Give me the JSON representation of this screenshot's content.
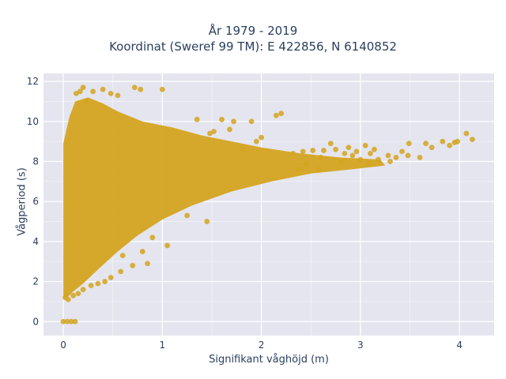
{
  "chart_data": {
    "type": "scatter",
    "title_lines": [
      "År 1979 - 2019",
      "Koordinat (Sweref 99 TM): E 422856, N 6140852"
    ],
    "xlabel": "Signifikant våghöjd (m)",
    "ylabel": "Vågperiod (s)",
    "xlim": [
      -0.2,
      4.35
    ],
    "ylim": [
      -0.7,
      12.4
    ],
    "x_ticks": [
      0,
      1,
      2,
      3,
      4
    ],
    "y_ticks": [
      0,
      2,
      4,
      6,
      8,
      10,
      12
    ],
    "grid": true,
    "legend": "none",
    "point_color": "#d4a420",
    "plot_bg": "#e5e5ef",
    "series": [
      {
        "values": [
          [
            4.13,
            9.1
          ],
          [
            4.07,
            9.4
          ],
          [
            3.98,
            9.0
          ],
          [
            3.95,
            8.95
          ],
          [
            3.9,
            8.8
          ],
          [
            3.83,
            9.0
          ],
          [
            3.72,
            8.7
          ],
          [
            3.66,
            8.9
          ],
          [
            3.6,
            8.2
          ],
          [
            3.49,
            8.9
          ],
          [
            3.48,
            8.3
          ],
          [
            3.42,
            8.5
          ],
          [
            3.36,
            8.2
          ],
          [
            3.3,
            8.0
          ],
          [
            3.28,
            8.3
          ],
          [
            3.18,
            8.1
          ],
          [
            3.14,
            8.6
          ],
          [
            3.1,
            8.4
          ],
          [
            3.08,
            7.9
          ],
          [
            3.05,
            8.8
          ],
          [
            3.0,
            8.1
          ],
          [
            2.96,
            8.5
          ],
          [
            2.92,
            8.3
          ],
          [
            2.88,
            8.7
          ],
          [
            2.84,
            8.4
          ],
          [
            2.8,
            8.0
          ],
          [
            2.75,
            8.6
          ],
          [
            2.7,
            8.9
          ],
          [
            2.63,
            8.55
          ],
          [
            2.6,
            8.2
          ],
          [
            2.58,
            7.6
          ],
          [
            2.52,
            8.55
          ],
          [
            2.45,
            7.9
          ],
          [
            2.42,
            8.5
          ],
          [
            2.38,
            7.6
          ],
          [
            2.32,
            8.4
          ],
          [
            2.2,
            10.4
          ],
          [
            2.15,
            10.3
          ],
          [
            2.0,
            9.2
          ],
          [
            1.95,
            9.0
          ],
          [
            1.9,
            10.0
          ],
          [
            1.82,
            8.6
          ],
          [
            1.72,
            10.0
          ],
          [
            1.68,
            9.6
          ],
          [
            1.6,
            10.1
          ],
          [
            1.52,
            9.5
          ],
          [
            1.48,
            9.4
          ],
          [
            1.35,
            10.1
          ],
          [
            1.0,
            11.6
          ],
          [
            0.78,
            11.6
          ],
          [
            0.72,
            11.7
          ],
          [
            0.55,
            11.3
          ],
          [
            0.48,
            11.4
          ],
          [
            0.4,
            11.6
          ],
          [
            0.3,
            11.5
          ],
          [
            0.2,
            11.7
          ],
          [
            0.17,
            11.5
          ],
          [
            0.13,
            11.4
          ],
          [
            0.23,
            11.0
          ],
          [
            1.25,
            5.3
          ],
          [
            1.45,
            5.0
          ],
          [
            1.05,
            3.8
          ],
          [
            0.9,
            4.2
          ],
          [
            0.85,
            2.9
          ],
          [
            0.8,
            3.5
          ],
          [
            0.7,
            2.8
          ],
          [
            0.6,
            3.3
          ],
          [
            0.58,
            2.5
          ],
          [
            0.48,
            2.2
          ],
          [
            0.42,
            2.0
          ],
          [
            0.35,
            1.9
          ],
          [
            0.28,
            1.8
          ],
          [
            0.2,
            1.6
          ],
          [
            0.15,
            1.4
          ],
          [
            0.1,
            1.3
          ],
          [
            0.05,
            1.1
          ],
          [
            0.02,
            1.2
          ],
          [
            0.0,
            0.0
          ],
          [
            0.04,
            0.0
          ],
          [
            0.08,
            0.0
          ],
          [
            0.12,
            0.0
          ]
        ]
      }
    ]
  }
}
